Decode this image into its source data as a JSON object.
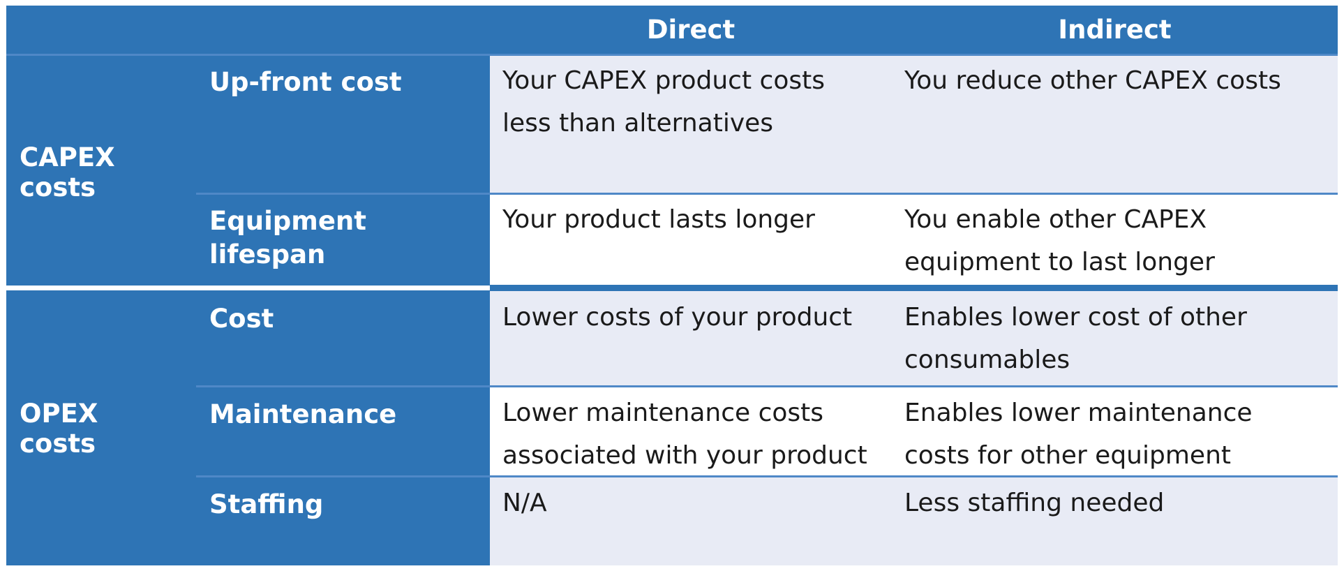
{
  "header": {
    "direct": "Direct",
    "indirect": "Indirect"
  },
  "groups": [
    {
      "label": "CAPEX costs",
      "rows": [
        {
          "label": "Up-front cost",
          "direct": "Your CAPEX product costs less than  alternatives",
          "indirect": "You reduce other CAPEX costs"
        },
        {
          "label": "Equipment lifespan",
          "direct": "Your product lasts longer",
          "indirect": "You enable other CAPEX equipment to last longer"
        }
      ]
    },
    {
      "label": "OPEX costs",
      "rows": [
        {
          "label": "Cost",
          "direct": "Lower costs of your product",
          "indirect": "Enables lower cost of other consumables"
        },
        {
          "label": "Maintenance",
          "direct": "Lower maintenance costs associated with your product",
          "indirect": "Enables lower maintenance costs for other equipment"
        },
        {
          "label": "Staffing",
          "direct": "N/A",
          "indirect": "Less staffing needed"
        }
      ]
    }
  ],
  "colors": {
    "header_blue": "#2e74b5",
    "light_row": "#e8ebf5",
    "white_row": "#ffffff"
  }
}
